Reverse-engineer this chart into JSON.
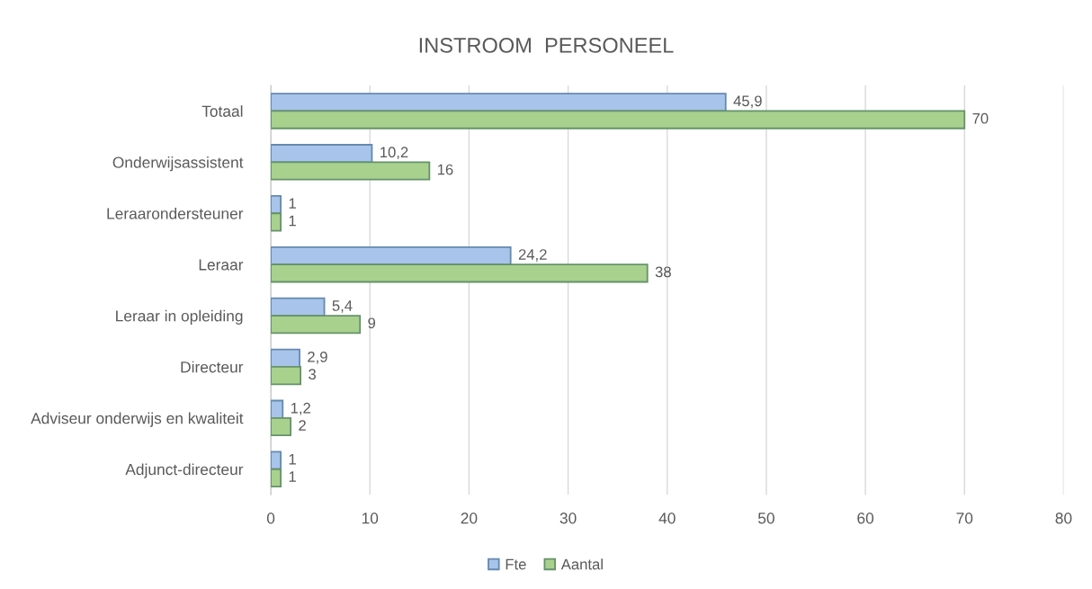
{
  "chart_data": {
    "type": "bar",
    "orientation": "horizontal",
    "title": "INSTROOM  PERSONEEL",
    "categories": [
      "Totaal",
      "Onderwijsassistent",
      "Leraarondersteuner",
      "Leraar",
      "Leraar in opleiding",
      "Directeur",
      "Adviseur onderwijs en kwaliteit",
      "Adjunct-directeur"
    ],
    "series": [
      {
        "name": "Fte",
        "color": "#a9c4eb",
        "values": [
          45.9,
          10.2,
          1,
          24.2,
          5.4,
          2.9,
          1.2,
          1
        ],
        "value_labels": [
          "45,9",
          "10,2",
          "1",
          "24,2",
          "5,4",
          "2,9",
          "1,2",
          "1"
        ]
      },
      {
        "name": "Aantal",
        "color": "#a9d18e",
        "values": [
          70,
          16,
          1,
          38,
          9,
          3,
          2,
          1
        ],
        "value_labels": [
          "70",
          "16",
          "1",
          "38",
          "9",
          "3",
          "2",
          "1"
        ]
      }
    ],
    "xlim": [
      0,
      80
    ],
    "xticks": [
      0,
      10,
      20,
      30,
      40,
      50,
      60,
      70,
      80
    ],
    "grid": "x",
    "legend": "bottom"
  }
}
